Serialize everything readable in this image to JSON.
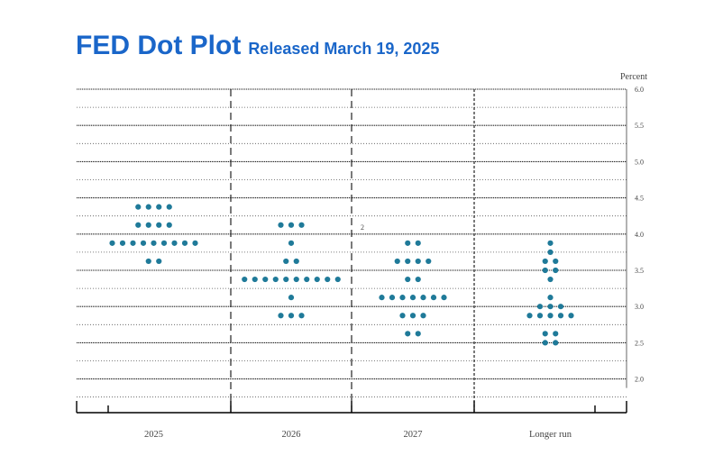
{
  "title": "FED Dot Plot",
  "subtitle": "Released March 19, 2025",
  "chart_data": {
    "type": "scatter",
    "ylabel": "Percent",
    "ylim": [
      1.875,
      6.0
    ],
    "y_ticks": [
      "6.0",
      "5.5",
      "5.0",
      "4.5",
      "4.0",
      "3.5",
      "3.0",
      "2.5",
      "2.0"
    ],
    "categories": [
      "2025",
      "2026",
      "2027",
      "Longer run"
    ],
    "annotation": "2",
    "dot_color": "#1f7a99",
    "grid": "dotted lines every 0.25, solid at each 0.5",
    "points": [
      {
        "category": "2025",
        "y": 4.375,
        "count": 4
      },
      {
        "category": "2025",
        "y": 4.125,
        "count": 4
      },
      {
        "category": "2025",
        "y": 3.875,
        "count": 9
      },
      {
        "category": "2025",
        "y": 3.625,
        "count": 2
      },
      {
        "category": "2026",
        "y": 4.125,
        "count": 3
      },
      {
        "category": "2026",
        "y": 3.875,
        "count": 1
      },
      {
        "category": "2026",
        "y": 3.625,
        "count": 2
      },
      {
        "category": "2026",
        "y": 3.375,
        "count": 10
      },
      {
        "category": "2026",
        "y": 3.125,
        "count": 1
      },
      {
        "category": "2026",
        "y": 2.875,
        "count": 3
      },
      {
        "category": "2027",
        "y": 3.875,
        "count": 2
      },
      {
        "category": "2027",
        "y": 3.625,
        "count": 4
      },
      {
        "category": "2027",
        "y": 3.375,
        "count": 2
      },
      {
        "category": "2027",
        "y": 3.125,
        "count": 7
      },
      {
        "category": "2027",
        "y": 2.875,
        "count": 3
      },
      {
        "category": "2027",
        "y": 2.625,
        "count": 2
      },
      {
        "category": "Longer run",
        "y": 3.875,
        "count": 1
      },
      {
        "category": "Longer run",
        "y": 3.75,
        "count": 1
      },
      {
        "category": "Longer run",
        "y": 3.625,
        "count": 2
      },
      {
        "category": "Longer run",
        "y": 3.5,
        "count": 2
      },
      {
        "category": "Longer run",
        "y": 3.375,
        "count": 1
      },
      {
        "category": "Longer run",
        "y": 3.125,
        "count": 1
      },
      {
        "category": "Longer run",
        "y": 3.0,
        "count": 3
      },
      {
        "category": "Longer run",
        "y": 2.875,
        "count": 5
      },
      {
        "category": "Longer run",
        "y": 2.625,
        "count": 2
      },
      {
        "category": "Longer run",
        "y": 2.5,
        "count": 2
      }
    ]
  }
}
